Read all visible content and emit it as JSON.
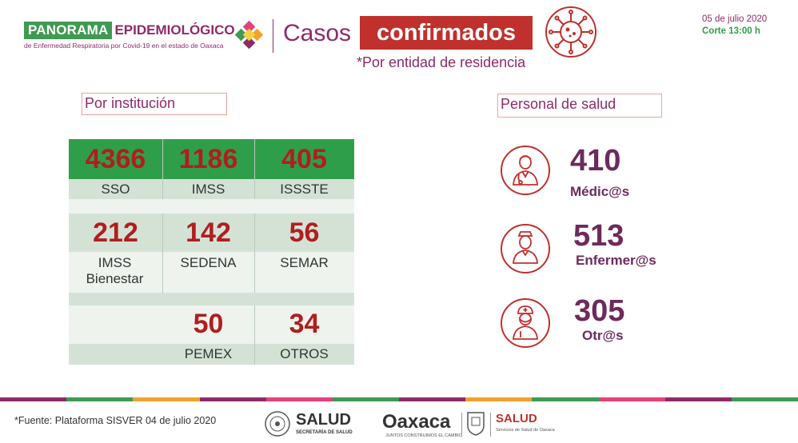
{
  "header": {
    "brand_panorama": "PANORAMA",
    "brand_epi": "EPIDEMIOLÓGICO",
    "brand_sub": "de Enfermedad Respiratoria por Covid-19 en el estado de Oaxaca",
    "title_a": "Casos",
    "title_b": "confirmados",
    "subtitle": "*Por entidad de residencia",
    "date": "05 de julio 2020",
    "cut": "Corte 13:00 h"
  },
  "sections": {
    "institution": "Por institución",
    "staff": "Personal de salud"
  },
  "institutions": [
    {
      "value": "4366",
      "label": "SSO"
    },
    {
      "value": "1186",
      "label": "IMSS"
    },
    {
      "value": "405",
      "label": "ISSSTE"
    },
    {
      "value": "212",
      "label": "IMSS Bienestar"
    },
    {
      "value": "142",
      "label": "SEDENA"
    },
    {
      "value": "56",
      "label": "SEMAR"
    },
    {
      "value": "50",
      "label": "PEMEX"
    },
    {
      "value": "34",
      "label": "OTROS"
    }
  ],
  "staff": [
    {
      "value": "410",
      "label": "Médic@s",
      "icon": "doctor-icon"
    },
    {
      "value": "513",
      "label": "Enfermer@s",
      "icon": "nurse-icon"
    },
    {
      "value": "305",
      "label": "Otr@s",
      "icon": "health-worker-icon"
    }
  ],
  "footer": {
    "source": "*Fuente: Plataforma SISVER 04 de julio 2020",
    "salud": "SALUD",
    "salud_sub": "SECRETARÍA DE SALUD",
    "oaxaca": "Oaxaca",
    "oaxaca_sub": "JUNTOS CONSTRUIMOS EL CAMBIO",
    "salud2": "SALUD",
    "salud2_sub": "Servicios de Salud de Oaxaca"
  },
  "colors": {
    "magenta": "#8f2a6a",
    "green": "#2f9e4a",
    "red": "#c0302c",
    "value_red": "#b01e1e",
    "staff_purple": "#6e2a5c"
  }
}
